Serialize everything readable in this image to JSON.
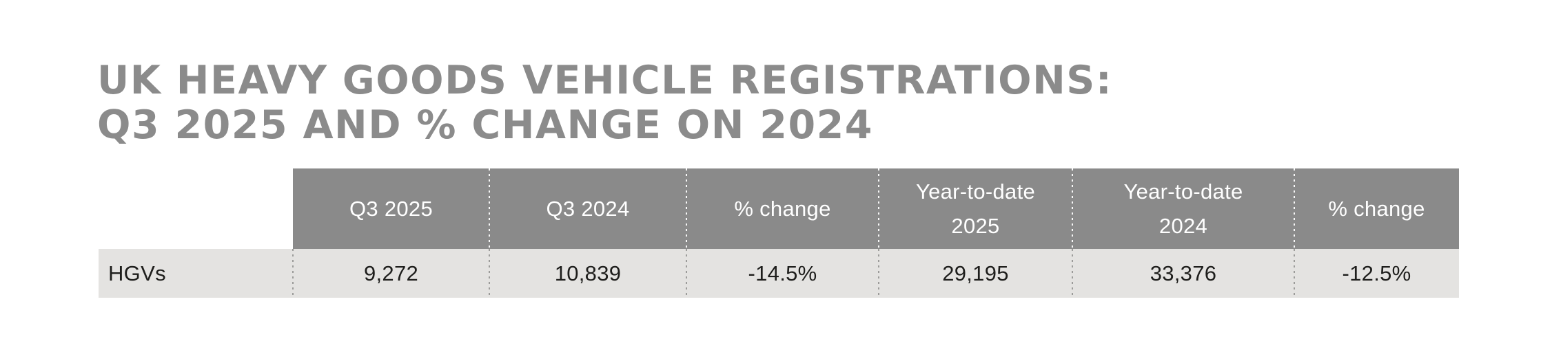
{
  "title": {
    "line1": "UK HEAVY GOODS VEHICLE REGISTRATIONS:",
    "line2": "Q3 2025 AND % CHANGE ON 2024",
    "color": "#8b8b8b"
  },
  "table": {
    "header": {
      "bg_color": "#8a8a8a",
      "text_color": "#ffffff",
      "cells": [
        "Q3 2025",
        "Q3 2024",
        "% change",
        "Year-to-date\n2025",
        "Year-to-date\n2024",
        "% change"
      ]
    },
    "row": {
      "bg_color": "#e4e3e1",
      "text_color": "#1e1e1c",
      "label": "HGVs",
      "values": [
        "9,272",
        "10,839",
        "-14.5%",
        "29,195",
        "33,376",
        "-12.5%"
      ]
    }
  },
  "chart_data": {
    "type": "table",
    "title": "UK HEAVY GOODS VEHICLE REGISTRATIONS: Q3 2025 AND % CHANGE ON 2024",
    "columns": [
      "",
      "Q3 2025",
      "Q3 2024",
      "% change",
      "Year-to-date 2025",
      "Year-to-date 2024",
      "% change"
    ],
    "rows": [
      [
        "HGVs",
        "9,272",
        "10,839",
        "-14.5%",
        "29,195",
        "33,376",
        "-12.5%"
      ]
    ]
  }
}
